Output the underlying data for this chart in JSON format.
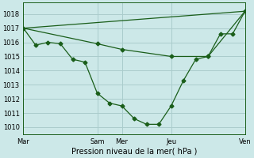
{
  "xlabel": "Pression niveau de la mer( hPa )",
  "background_color": "#cce8e8",
  "grid_color": "#aacccc",
  "line_color": "#1a5e1a",
  "ylim": [
    1009.5,
    1018.8
  ],
  "yticks": [
    1010,
    1011,
    1012,
    1013,
    1014,
    1015,
    1016,
    1017,
    1018
  ],
  "xtick_labels": [
    "Mar",
    "Sam",
    "Mer",
    "Jeu",
    "Ven"
  ],
  "xtick_positions": [
    0,
    3,
    4,
    6,
    9
  ],
  "xlim": [
    0,
    9.0
  ],
  "vline_positions": [
    3.0,
    4.0,
    6.0
  ],
  "line1_x": [
    0,
    0.5,
    1.0,
    1.5,
    2.0,
    2.5,
    3.0,
    3.5,
    4.0,
    4.5,
    5.0,
    5.5,
    6.0,
    6.5,
    7.0,
    7.5,
    8.0,
    8.5,
    9.0
  ],
  "line1_y": [
    1017.0,
    1015.8,
    1016.0,
    1015.9,
    1014.8,
    1014.6,
    1012.4,
    1011.7,
    1011.5,
    1010.6,
    1010.2,
    1010.2,
    1011.5,
    1013.3,
    1014.8,
    1015.0,
    1016.6,
    1016.6,
    1018.2
  ],
  "line2_x": [
    0,
    3.0,
    4.0,
    6.0,
    7.5,
    9.0
  ],
  "line2_y": [
    1017.0,
    1015.9,
    1015.5,
    1015.0,
    1015.0,
    1018.2
  ],
  "line3_x": [
    0,
    9.0
  ],
  "line3_y": [
    1017.0,
    1018.2
  ],
  "marker": "D",
  "marker_size": 2.5,
  "tick_fontsize": 6,
  "xlabel_fontsize": 7
}
